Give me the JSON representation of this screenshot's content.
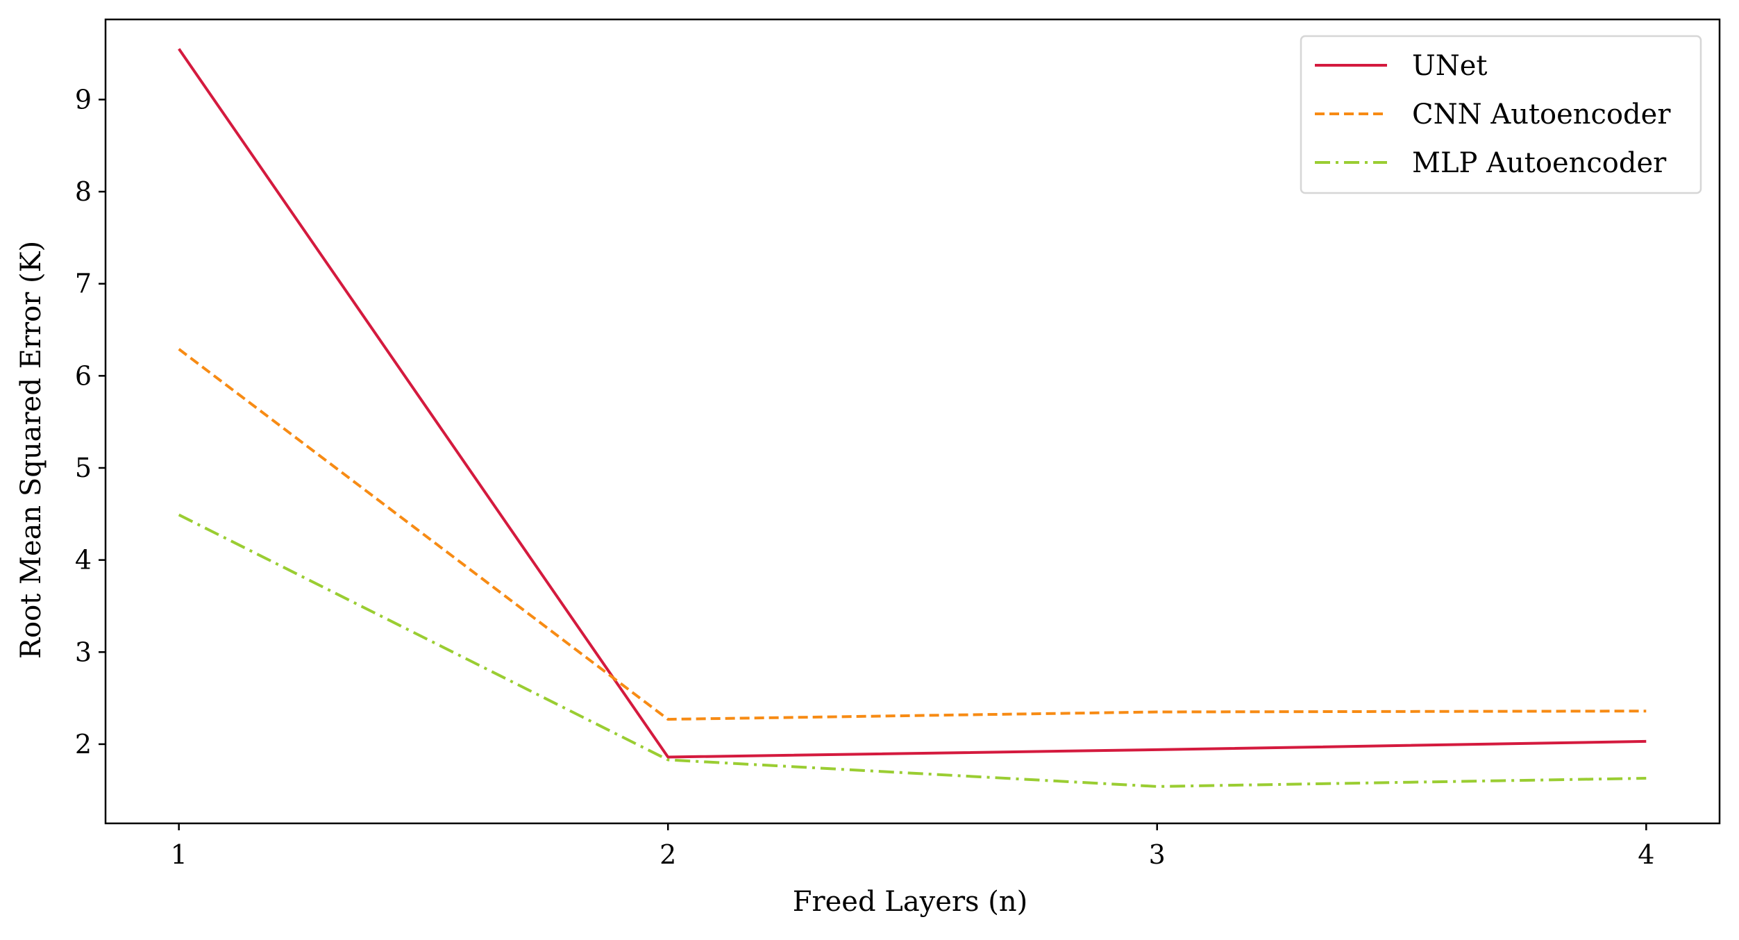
{
  "chart_data": {
    "type": "line",
    "title": "",
    "xlabel": "Freed Layers (n)",
    "ylabel": "Root Mean Squared Error (K)",
    "x": [
      1,
      2,
      3,
      4
    ],
    "x_ticks": [
      "1",
      "2",
      "3",
      "4"
    ],
    "y_ticks": [
      "2",
      "3",
      "4",
      "5",
      "6",
      "7",
      "8",
      "9"
    ],
    "xlim": [
      0.85,
      4.15
    ],
    "ylim": [
      1.14,
      9.87
    ],
    "grid": false,
    "legend_position": "top-right",
    "series": [
      {
        "name": "UNet",
        "values": [
          9.55,
          1.86,
          1.94,
          2.03
        ],
        "color": "#d41a3e",
        "style": "solid"
      },
      {
        "name": "CNN Autoencoder",
        "values": [
          6.29,
          2.27,
          2.35,
          2.36
        ],
        "color": "#f78b14",
        "style": "dashed"
      },
      {
        "name": "MLP Autoencoder",
        "values": [
          4.49,
          1.83,
          1.54,
          1.63
        ],
        "color": "#9acd32",
        "style": "dashdot"
      }
    ]
  }
}
